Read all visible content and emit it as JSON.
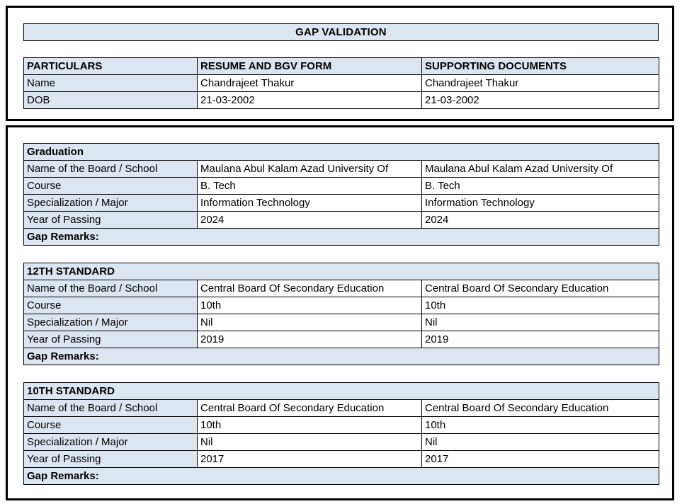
{
  "page": {
    "title": "GAP VALIDATION"
  },
  "colors": {
    "header_fill": "#dce6f1",
    "border": "#000000",
    "text": "#000000",
    "background": "#ffffff"
  },
  "particulars_table": {
    "headers": [
      "PARTICULARS",
      "RESUME AND BGV FORM",
      "SUPPORTING DOCUMENTS"
    ],
    "rows": [
      {
        "label": "Name",
        "resume": "Chandrajeet Thakur",
        "supporting": "Chandrajeet Thakur"
      },
      {
        "label": "DOB",
        "resume": "21-03-2002",
        "supporting": "21-03-2002"
      }
    ]
  },
  "sections": [
    {
      "title": "Graduation",
      "rows": [
        {
          "label": "Name of the Board / School",
          "resume": "Maulana Abul Kalam Azad University Of",
          "supporting": "Maulana Abul Kalam Azad University Of"
        },
        {
          "label": "Course",
          "resume": "B. Tech",
          "supporting": "B. Tech"
        },
        {
          "label": "Specialization / Major",
          "resume": "Information Technology",
          "supporting": "Information Technology"
        },
        {
          "label": "Year of Passing",
          "resume": "2024",
          "supporting": "2024"
        }
      ],
      "gap_remarks_label": "Gap Remarks:"
    },
    {
      "title": "12TH STANDARD",
      "rows": [
        {
          "label": "Name of the Board / School",
          "resume": "Central Board Of Secondary Education",
          "supporting": "Central Board Of Secondary Education"
        },
        {
          "label": "Course",
          "resume": "10th",
          "supporting": "10th"
        },
        {
          "label": "Specialization / Major",
          "resume": "Nil",
          "supporting": "Nil"
        },
        {
          "label": "Year of Passing",
          "resume": "2019",
          "supporting": "2019"
        }
      ],
      "gap_remarks_label": "Gap Remarks:"
    },
    {
      "title": "10TH STANDARD",
      "rows": [
        {
          "label": "Name of the Board / School",
          "resume": "Central Board Of Secondary Education",
          "supporting": "Central Board Of Secondary Education"
        },
        {
          "label": "Course",
          "resume": "10th",
          "supporting": "10th"
        },
        {
          "label": "Specialization / Major",
          "resume": "Nil",
          "supporting": "Nil"
        },
        {
          "label": "Year of Passing",
          "resume": "2017",
          "supporting": "2017"
        }
      ],
      "gap_remarks_label": "Gap Remarks:"
    }
  ]
}
